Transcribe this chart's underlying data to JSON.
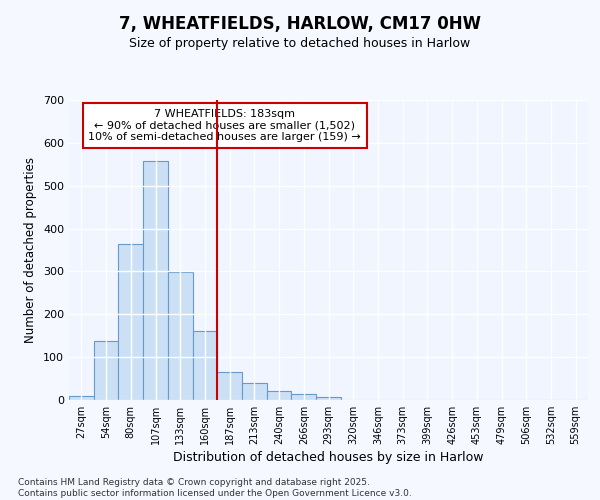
{
  "title1": "7, WHEATFIELDS, HARLOW, CM17 0HW",
  "title2": "Size of property relative to detached houses in Harlow",
  "xlabel": "Distribution of detached houses by size in Harlow",
  "ylabel": "Number of detached properties",
  "categories": [
    "27sqm",
    "54sqm",
    "80sqm",
    "107sqm",
    "133sqm",
    "160sqm",
    "187sqm",
    "213sqm",
    "240sqm",
    "266sqm",
    "293sqm",
    "320sqm",
    "346sqm",
    "373sqm",
    "399sqm",
    "426sqm",
    "453sqm",
    "479sqm",
    "506sqm",
    "532sqm",
    "559sqm"
  ],
  "values": [
    10,
    137,
    363,
    557,
    298,
    160,
    65,
    40,
    22,
    13,
    7,
    1,
    0,
    0,
    0,
    0,
    0,
    0,
    0,
    0,
    0
  ],
  "bar_color": "#cce0f5",
  "bar_edge_color": "#6699cc",
  "vline_color": "#cc0000",
  "vline_index": 5.5,
  "annotation_text": "7 WHEATFIELDS: 183sqm\n← 90% of detached houses are smaller (1,502)\n10% of semi-detached houses are larger (159) →",
  "annotation_box_facecolor": "#ffffff",
  "annotation_box_edgecolor": "#cc0000",
  "ylim": [
    0,
    700
  ],
  "yticks": [
    0,
    100,
    200,
    300,
    400,
    500,
    600,
    700
  ],
  "footer": "Contains HM Land Registry data © Crown copyright and database right 2025.\nContains public sector information licensed under the Open Government Licence v3.0.",
  "bg_color": "#f5f8ff",
  "plot_bg_color": "#f0f5ff",
  "grid_color": "#ffffff"
}
